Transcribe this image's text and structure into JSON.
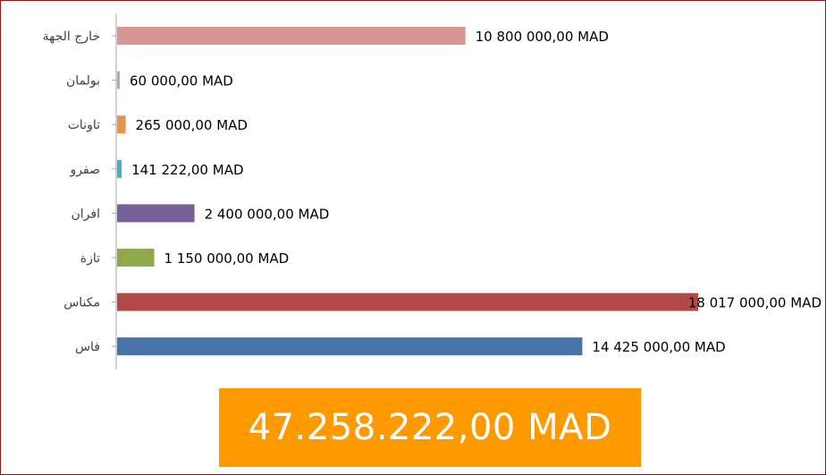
{
  "chart_data": {
    "type": "bar",
    "orientation": "horizontal",
    "categories": [
      "خارج الجهة",
      "بولمان",
      "تاونات",
      "صفرو",
      "افران",
      "تازة",
      "مكناس",
      "فاس"
    ],
    "values": [
      10800000,
      60000,
      265000,
      141222,
      2400000,
      1150000,
      18017000,
      14425000
    ],
    "data_labels": [
      "10 800 000,00 MAD",
      "60 000,00 MAD",
      "265 000,00 MAD",
      "141 222,00 MAD",
      "2 400 000,00 MAD",
      "1 150 000,00 MAD",
      "18 017 000,00 MAD",
      "14 425 000,00 MAD"
    ],
    "colors": [
      "#d99594",
      "#95b3d7",
      "#e3964a",
      "#4bacc6",
      "#76609a",
      "#8ea84a",
      "#b04a47",
      "#4874aa"
    ],
    "xlim": [
      0,
      18017000
    ],
    "grid": false,
    "legend": "none",
    "title": "",
    "xlabel": "",
    "ylabel": ""
  },
  "total": {
    "label": "47.258.222,00 MAD",
    "background": "#ff9900",
    "color": "#ffffff"
  },
  "frame_color": "#8b1a1a"
}
